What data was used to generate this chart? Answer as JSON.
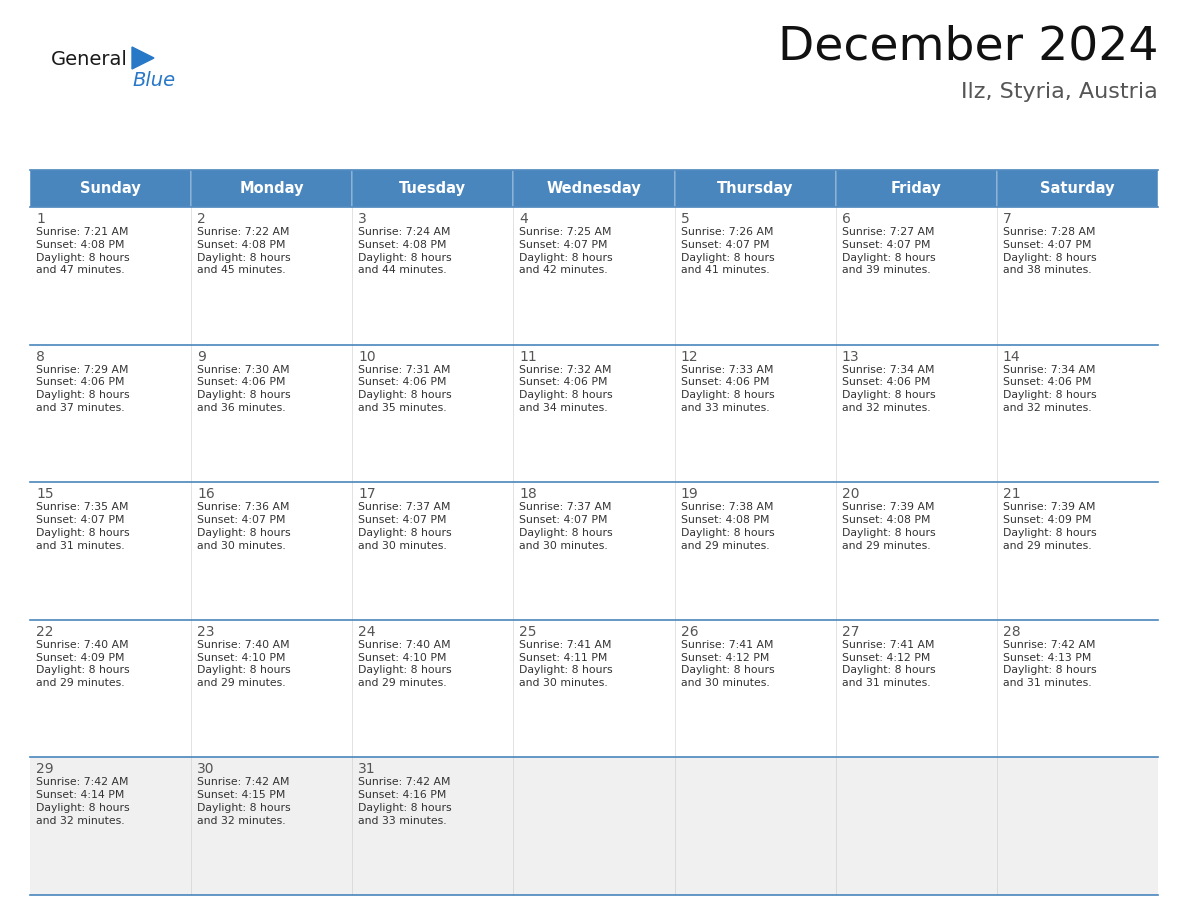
{
  "title": "December 2024",
  "subtitle": "Ilz, Styria, Austria",
  "header_bg_color": "#4a86be",
  "header_text_color": "#ffffff",
  "header_font_size": 10.5,
  "day_num_font_size": 10,
  "cell_text_font_size": 7.8,
  "title_font_size": 34,
  "subtitle_font_size": 16,
  "days_of_week": [
    "Sunday",
    "Monday",
    "Tuesday",
    "Wednesday",
    "Thursday",
    "Friday",
    "Saturday"
  ],
  "calendar_data": [
    [
      {
        "day": 1,
        "sunrise": "7:21 AM",
        "sunset": "4:08 PM",
        "daylight_hours": 8,
        "daylight_minutes": 47
      },
      {
        "day": 2,
        "sunrise": "7:22 AM",
        "sunset": "4:08 PM",
        "daylight_hours": 8,
        "daylight_minutes": 45
      },
      {
        "day": 3,
        "sunrise": "7:24 AM",
        "sunset": "4:08 PM",
        "daylight_hours": 8,
        "daylight_minutes": 44
      },
      {
        "day": 4,
        "sunrise": "7:25 AM",
        "sunset": "4:07 PM",
        "daylight_hours": 8,
        "daylight_minutes": 42
      },
      {
        "day": 5,
        "sunrise": "7:26 AM",
        "sunset": "4:07 PM",
        "daylight_hours": 8,
        "daylight_minutes": 41
      },
      {
        "day": 6,
        "sunrise": "7:27 AM",
        "sunset": "4:07 PM",
        "daylight_hours": 8,
        "daylight_minutes": 39
      },
      {
        "day": 7,
        "sunrise": "7:28 AM",
        "sunset": "4:07 PM",
        "daylight_hours": 8,
        "daylight_minutes": 38
      }
    ],
    [
      {
        "day": 8,
        "sunrise": "7:29 AM",
        "sunset": "4:06 PM",
        "daylight_hours": 8,
        "daylight_minutes": 37
      },
      {
        "day": 9,
        "sunrise": "7:30 AM",
        "sunset": "4:06 PM",
        "daylight_hours": 8,
        "daylight_minutes": 36
      },
      {
        "day": 10,
        "sunrise": "7:31 AM",
        "sunset": "4:06 PM",
        "daylight_hours": 8,
        "daylight_minutes": 35
      },
      {
        "day": 11,
        "sunrise": "7:32 AM",
        "sunset": "4:06 PM",
        "daylight_hours": 8,
        "daylight_minutes": 34
      },
      {
        "day": 12,
        "sunrise": "7:33 AM",
        "sunset": "4:06 PM",
        "daylight_hours": 8,
        "daylight_minutes": 33
      },
      {
        "day": 13,
        "sunrise": "7:34 AM",
        "sunset": "4:06 PM",
        "daylight_hours": 8,
        "daylight_minutes": 32
      },
      {
        "day": 14,
        "sunrise": "7:34 AM",
        "sunset": "4:06 PM",
        "daylight_hours": 8,
        "daylight_minutes": 32
      }
    ],
    [
      {
        "day": 15,
        "sunrise": "7:35 AM",
        "sunset": "4:07 PM",
        "daylight_hours": 8,
        "daylight_minutes": 31
      },
      {
        "day": 16,
        "sunrise": "7:36 AM",
        "sunset": "4:07 PM",
        "daylight_hours": 8,
        "daylight_minutes": 30
      },
      {
        "day": 17,
        "sunrise": "7:37 AM",
        "sunset": "4:07 PM",
        "daylight_hours": 8,
        "daylight_minutes": 30
      },
      {
        "day": 18,
        "sunrise": "7:37 AM",
        "sunset": "4:07 PM",
        "daylight_hours": 8,
        "daylight_minutes": 30
      },
      {
        "day": 19,
        "sunrise": "7:38 AM",
        "sunset": "4:08 PM",
        "daylight_hours": 8,
        "daylight_minutes": 29
      },
      {
        "day": 20,
        "sunrise": "7:39 AM",
        "sunset": "4:08 PM",
        "daylight_hours": 8,
        "daylight_minutes": 29
      },
      {
        "day": 21,
        "sunrise": "7:39 AM",
        "sunset": "4:09 PM",
        "daylight_hours": 8,
        "daylight_minutes": 29
      }
    ],
    [
      {
        "day": 22,
        "sunrise": "7:40 AM",
        "sunset": "4:09 PM",
        "daylight_hours": 8,
        "daylight_minutes": 29
      },
      {
        "day": 23,
        "sunrise": "7:40 AM",
        "sunset": "4:10 PM",
        "daylight_hours": 8,
        "daylight_minutes": 29
      },
      {
        "day": 24,
        "sunrise": "7:40 AM",
        "sunset": "4:10 PM",
        "daylight_hours": 8,
        "daylight_minutes": 29
      },
      {
        "day": 25,
        "sunrise": "7:41 AM",
        "sunset": "4:11 PM",
        "daylight_hours": 8,
        "daylight_minutes": 30
      },
      {
        "day": 26,
        "sunrise": "7:41 AM",
        "sunset": "4:12 PM",
        "daylight_hours": 8,
        "daylight_minutes": 30
      },
      {
        "day": 27,
        "sunrise": "7:41 AM",
        "sunset": "4:12 PM",
        "daylight_hours": 8,
        "daylight_minutes": 31
      },
      {
        "day": 28,
        "sunrise": "7:42 AM",
        "sunset": "4:13 PM",
        "daylight_hours": 8,
        "daylight_minutes": 31
      }
    ],
    [
      {
        "day": 29,
        "sunrise": "7:42 AM",
        "sunset": "4:14 PM",
        "daylight_hours": 8,
        "daylight_minutes": 32
      },
      {
        "day": 30,
        "sunrise": "7:42 AM",
        "sunset": "4:15 PM",
        "daylight_hours": 8,
        "daylight_minutes": 32
      },
      {
        "day": 31,
        "sunrise": "7:42 AM",
        "sunset": "4:16 PM",
        "daylight_hours": 8,
        "daylight_minutes": 33
      },
      null,
      null,
      null,
      null
    ]
  ],
  "background_color": "#ffffff",
  "cell_bg_color": "#ffffff",
  "last_row_bg_color": "#f0f0f0",
  "grid_color": "#4a86be",
  "separator_color": "#4a86be",
  "text_color": "#333333",
  "day_num_color": "#555555",
  "logo_general_color": "#1a1a1a",
  "logo_blue_color": "#2878c8"
}
